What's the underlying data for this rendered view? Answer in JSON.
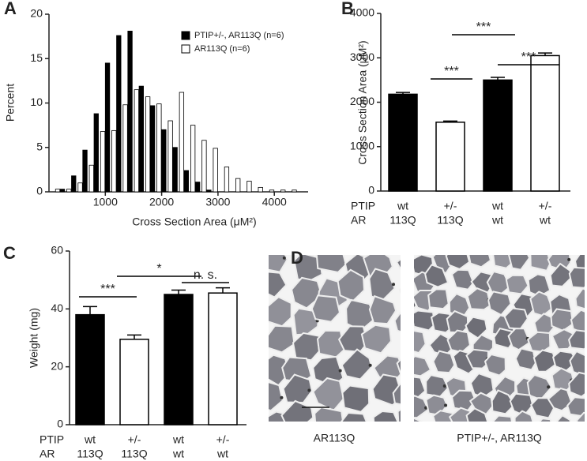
{
  "chart_data": [
    {
      "type": "grouped_bar",
      "panel_label": "A",
      "ylabel": "Percent",
      "xlabel": "Cross Section Area (μM²)",
      "x": [
        200,
        400,
        600,
        800,
        1000,
        1200,
        1400,
        1600,
        1800,
        2000,
        2200,
        2400,
        2600,
        2800,
        3000,
        3200,
        3400,
        3600,
        3800,
        4000,
        4200,
        4400
      ],
      "series": [
        {
          "name": "PTIP+/-, AR113Q (n=6)",
          "color": "#000000",
          "values": [
            0.3,
            1.8,
            4.7,
            8.8,
            14.5,
            17.6,
            18.1,
            11.9,
            9.7,
            7.0,
            5.0,
            2.4,
            1.1,
            0.2,
            0,
            0,
            0,
            0,
            0,
            0,
            0,
            0
          ]
        },
        {
          "name": "AR113Q (n=6)",
          "color": "#ffffff",
          "values": [
            0.3,
            0.3,
            1.0,
            3.0,
            6.8,
            6.9,
            9.8,
            11.5,
            10.7,
            9.9,
            8.0,
            11.2,
            7.5,
            5.8,
            4.9,
            2.8,
            1.5,
            1.2,
            0.5,
            0.2,
            0.2,
            0.2
          ]
        }
      ],
      "xlim": [
        0,
        4600
      ],
      "xticks": [
        1000,
        2000,
        3000,
        4000
      ],
      "ylim": [
        0,
        20
      ],
      "yticks": [
        0,
        5,
        10,
        15,
        20
      ]
    },
    {
      "type": "bar",
      "panel_label": "B",
      "ylabel": "Cross Section Area (μM²)",
      "row_labels": [
        "PTIP",
        "AR"
      ],
      "categories": [
        [
          "wt",
          "113Q"
        ],
        [
          "+/-",
          "113Q"
        ],
        [
          "wt",
          "wt"
        ],
        [
          "+/-",
          "wt"
        ]
      ],
      "values": [
        2180,
        1550,
        2500,
        3050
      ],
      "errors": [
        40,
        25,
        60,
        60
      ],
      "colors": [
        "#000000",
        "#ffffff",
        "#000000",
        "#ffffff"
      ],
      "annotations": [
        "***",
        "***",
        "***"
      ],
      "ylim": [
        0,
        4000
      ],
      "yticks": [
        0,
        1000,
        2000,
        3000,
        4000
      ]
    },
    {
      "type": "bar",
      "panel_label": "C",
      "ylabel": "Weight (mg)",
      "row_labels": [
        "PTIP",
        "AR"
      ],
      "categories": [
        [
          "wt",
          "113Q"
        ],
        [
          "+/-",
          "113Q"
        ],
        [
          "wt",
          "wt"
        ],
        [
          "+/-",
          "wt"
        ]
      ],
      "values": [
        38,
        29.5,
        45,
        45.5
      ],
      "errors": [
        2.8,
        1.5,
        1.5,
        1.8
      ],
      "colors": [
        "#000000",
        "#ffffff",
        "#000000",
        "#ffffff"
      ],
      "annotations": [
        "***",
        "*",
        "n. s."
      ],
      "ylim": [
        0,
        60
      ],
      "yticks": [
        0,
        20,
        40,
        60
      ]
    }
  ],
  "panel_d": {
    "label": "D",
    "captions": [
      "AR113Q",
      "PTIP+/-, AR113Q"
    ]
  }
}
